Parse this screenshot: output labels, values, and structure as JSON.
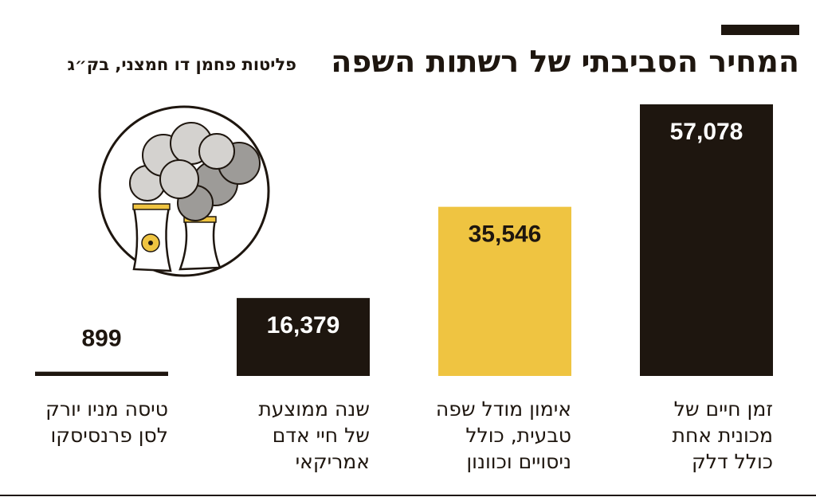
{
  "chart_data": {
    "type": "bar",
    "title": "המחיר הסביבתי של רשתות השפה",
    "subtitle": "פליטות פחמן דו חמצני, בק״ג",
    "categories": [
      [
        "זמן חיים של",
        "מכונית אחת",
        "כולל דלק"
      ],
      [
        "אימון מודל שפה",
        "טבעית, כולל",
        "ניסויים וכוונון"
      ],
      [
        "שנה ממוצעת",
        "של חיי אדם",
        "אמריקאי"
      ],
      [
        "טיסה מניו יורק",
        "לסן פרנסיסקו"
      ]
    ],
    "values": [
      57078,
      35546,
      16379,
      899
    ],
    "value_labels": [
      "57,078",
      "35,546",
      "16,379",
      "899"
    ],
    "colors": [
      "#1e160f",
      "#efc441",
      "#1e160f",
      "#1e160f"
    ]
  }
}
